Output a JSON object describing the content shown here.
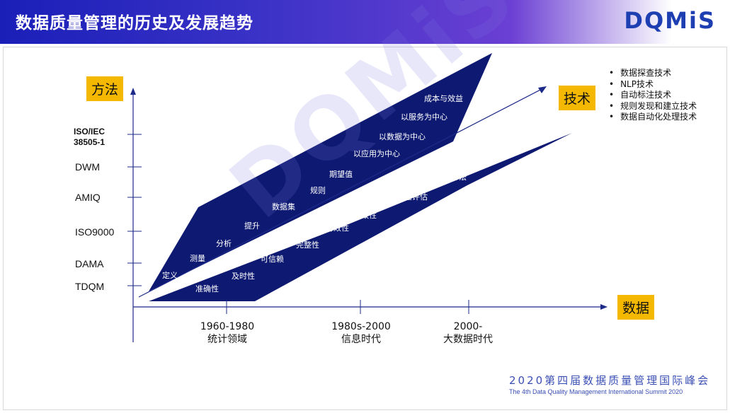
{
  "header": {
    "title": "数据质量管理的历史及发展趋势",
    "logo": "DQMiS"
  },
  "axes": {
    "y_label": "方法",
    "x_label": "数据",
    "tech_label": "技术"
  },
  "y_ticks": [
    "ISO/IEC\n38505-1",
    "DWM",
    "AMIQ",
    "ISO9000",
    "DAMA",
    "TDQM"
  ],
  "x_ticks": [
    {
      "line1": "1960-1980",
      "line2": "统计领域"
    },
    {
      "line1": "1980s-2000",
      "line2": "信息时代"
    },
    {
      "line1": "2000-",
      "line2": "大数据时代"
    }
  ],
  "upper_band": [
    "定义",
    "测量",
    "分析",
    "提升",
    "数据集",
    "规则",
    "期望值",
    "以应用为中心",
    "以数据为中心",
    "以服务为中心",
    "成本与效益"
  ],
  "lower_band": [
    "准确性",
    "及时性",
    "可信赖",
    "完整性",
    "有效性",
    "一致性",
    "数据质量评估",
    "维度度量方法"
  ],
  "tech_list": [
    "数据探查技术",
    "NLP技术",
    "自动标注技术",
    "规则发现和建立技术",
    "数据自动化处理技术"
  ],
  "footer": {
    "cn": "2020第四届数据质量管理国际峰会",
    "en": "The 4th Data Quality Management International Summit 2020"
  },
  "colors": {
    "band": "#0e1a72",
    "accent_box": "#f5b800",
    "axis": "#1d2a8a"
  }
}
